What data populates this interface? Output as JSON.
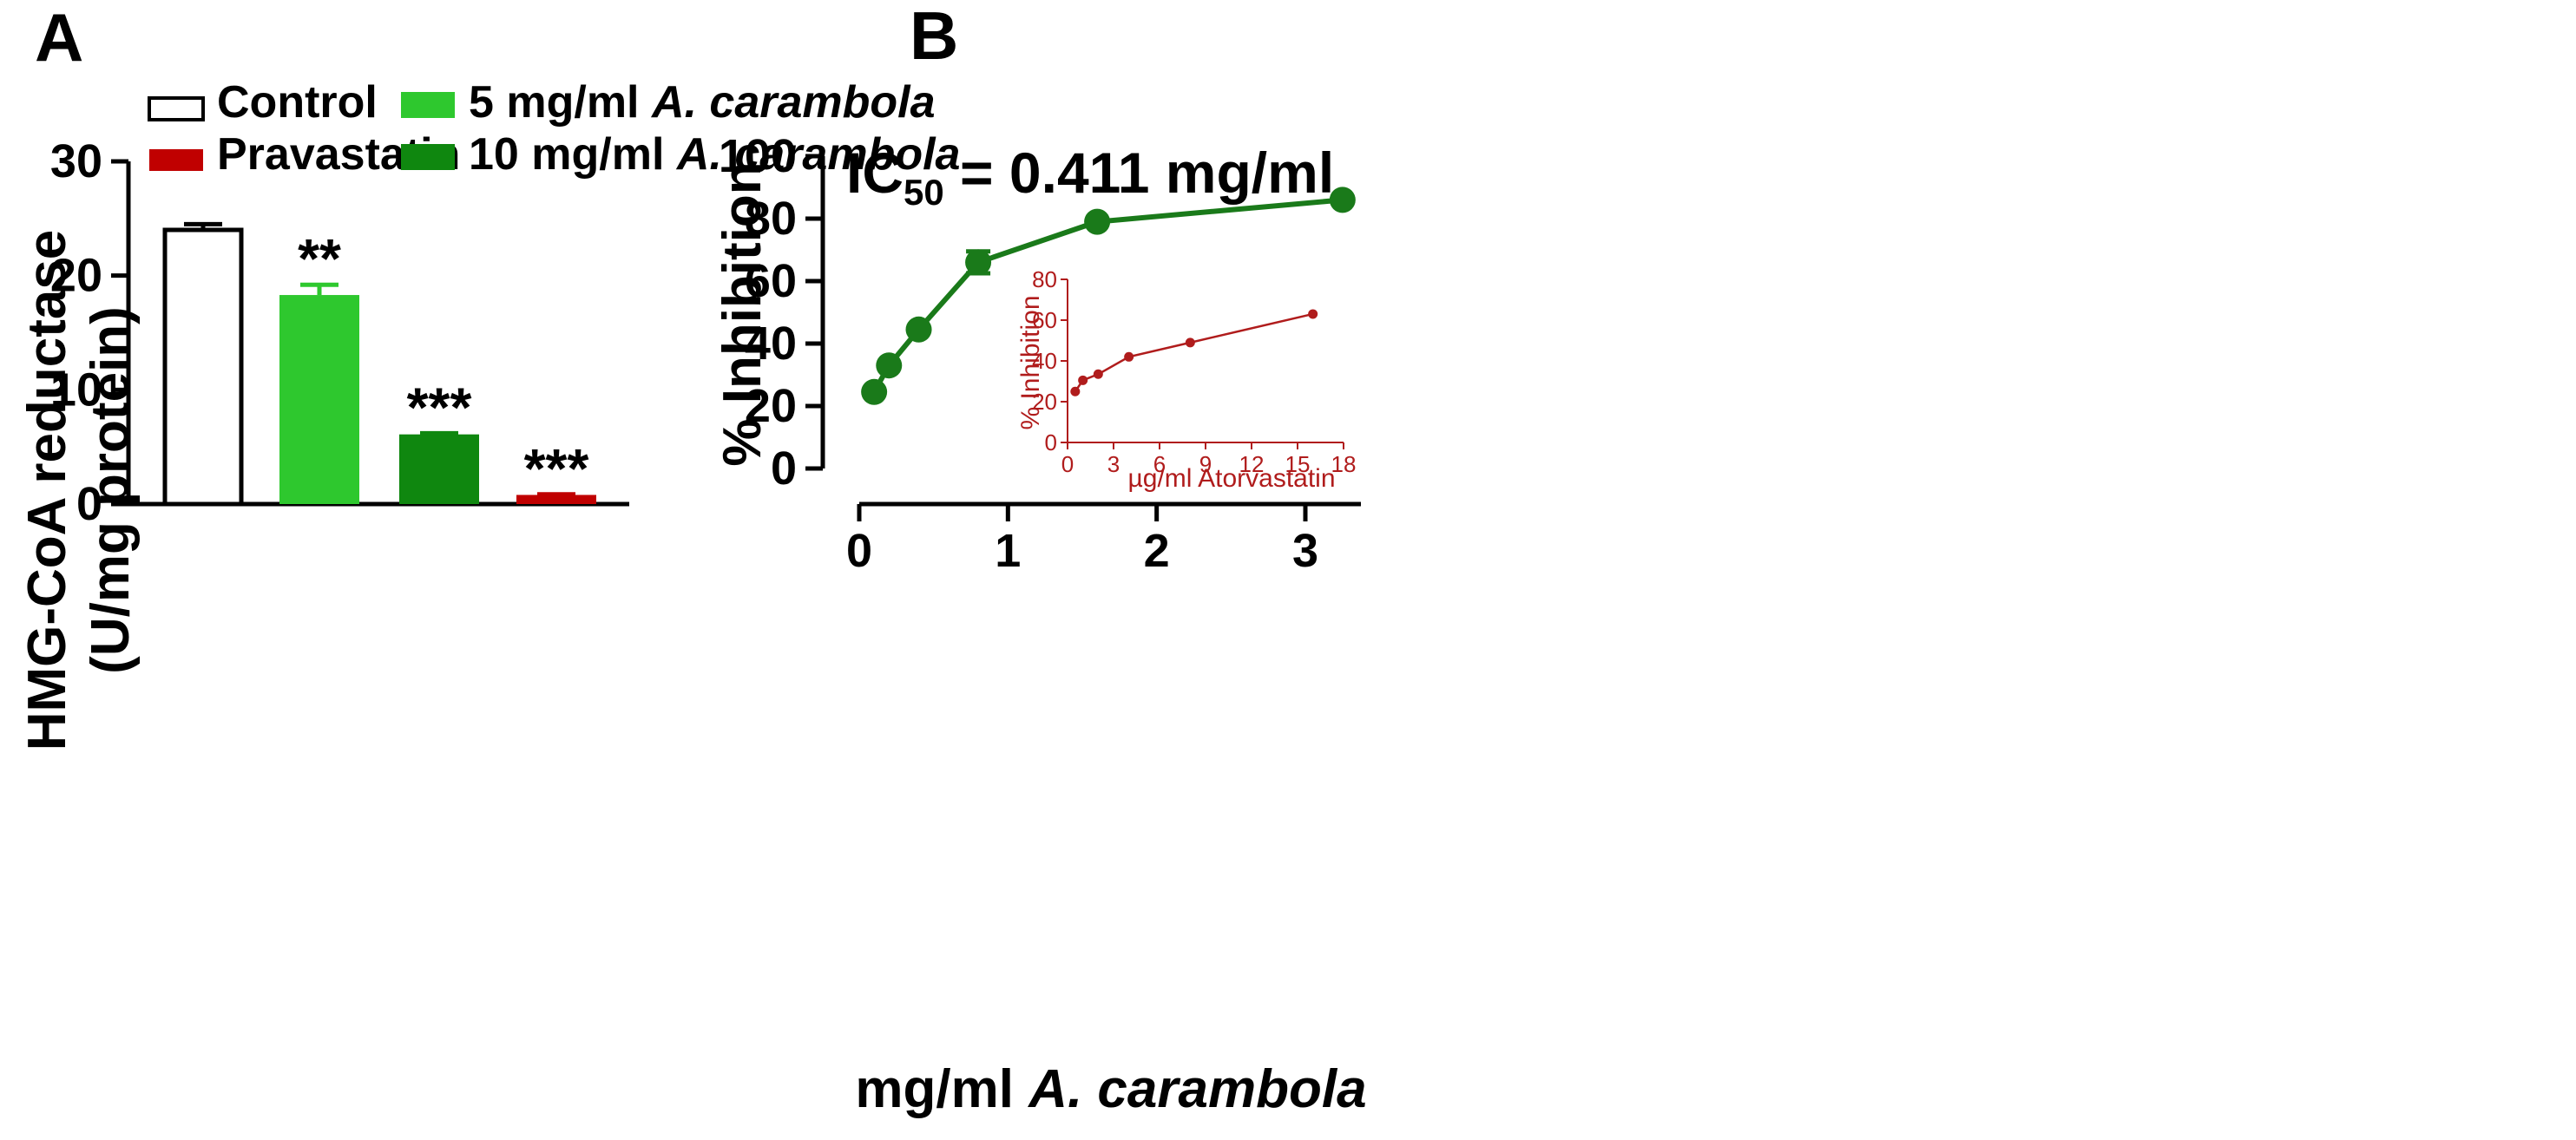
{
  "colors": {
    "control": "#ffffff",
    "pravastatin": "#c00000",
    "dose5": "#2ec82e",
    "dose10": "#0f870f",
    "curve": "#1a7a1a",
    "inset": "#b01c1c"
  },
  "chart_data": [
    {
      "panel": "A",
      "type": "bar",
      "ylabel_line1": "HMG-CoA reductase",
      "ylabel_line2": "(U/mg protein)",
      "ylim": [
        0,
        30
      ],
      "yticks": [
        "0",
        "10",
        "20",
        "30"
      ],
      "legend": [
        {
          "label": "Control",
          "italic": ""
        },
        {
          "label": "Pravastatin",
          "italic": ""
        },
        {
          "label": "5 mg/ml ",
          "italic": "A. carambola"
        },
        {
          "label": "10 mg/ml ",
          "italic": "A. carambola"
        }
      ],
      "bars": [
        {
          "name": "Control",
          "value": 24.0,
          "error": 0.5,
          "sig": ""
        },
        {
          "name": "5 mg/ml A. carambola",
          "value": 18.3,
          "error": 0.9,
          "sig": "**"
        },
        {
          "name": "10 mg/ml A. carambola",
          "value": 6.1,
          "error": 0.1,
          "sig": "***"
        },
        {
          "name": "Pravastatin",
          "value": 0.8,
          "error": 0.05,
          "sig": "***"
        }
      ]
    },
    {
      "panel": "B",
      "type": "line",
      "ylabel": "% Inhibition",
      "xlabel_prefix": "mg/ml ",
      "xlabel_italic": "A. carambola",
      "ic50_prefix": "IC",
      "ic50_sub": "50",
      "ic50_value": " = 0.411 mg/ml",
      "xlim": [
        0,
        3.3
      ],
      "ylim": [
        0,
        100
      ],
      "xticks": [
        "0",
        "1",
        "2",
        "3"
      ],
      "yticks": [
        "0",
        "20",
        "40",
        "60",
        "80",
        "100"
      ],
      "series": [
        {
          "name": "A. carambola",
          "x": [
            0.1,
            0.2,
            0.4,
            0.8,
            1.6,
            3.25
          ],
          "y": [
            24.5,
            33,
            44.5,
            66,
            79,
            86
          ],
          "err": [
            0,
            0,
            0,
            3.5,
            0,
            0
          ]
        }
      ]
    },
    {
      "panel": "B-inset",
      "type": "line",
      "ylabel": "% Inhibition",
      "xlabel": "µg/ml Atorvastatin",
      "xlim": [
        0,
        18
      ],
      "ylim": [
        0,
        80
      ],
      "xticks": [
        "0",
        "3",
        "6",
        "9",
        "12",
        "15",
        "18"
      ],
      "yticks": [
        "0",
        "20",
        "40",
        "60",
        "80"
      ],
      "series": [
        {
          "name": "Atorvastatin",
          "x": [
            0.5,
            1,
            2,
            4,
            8,
            16
          ],
          "y": [
            25,
            30.5,
            33.5,
            42,
            49,
            63
          ]
        }
      ]
    }
  ]
}
